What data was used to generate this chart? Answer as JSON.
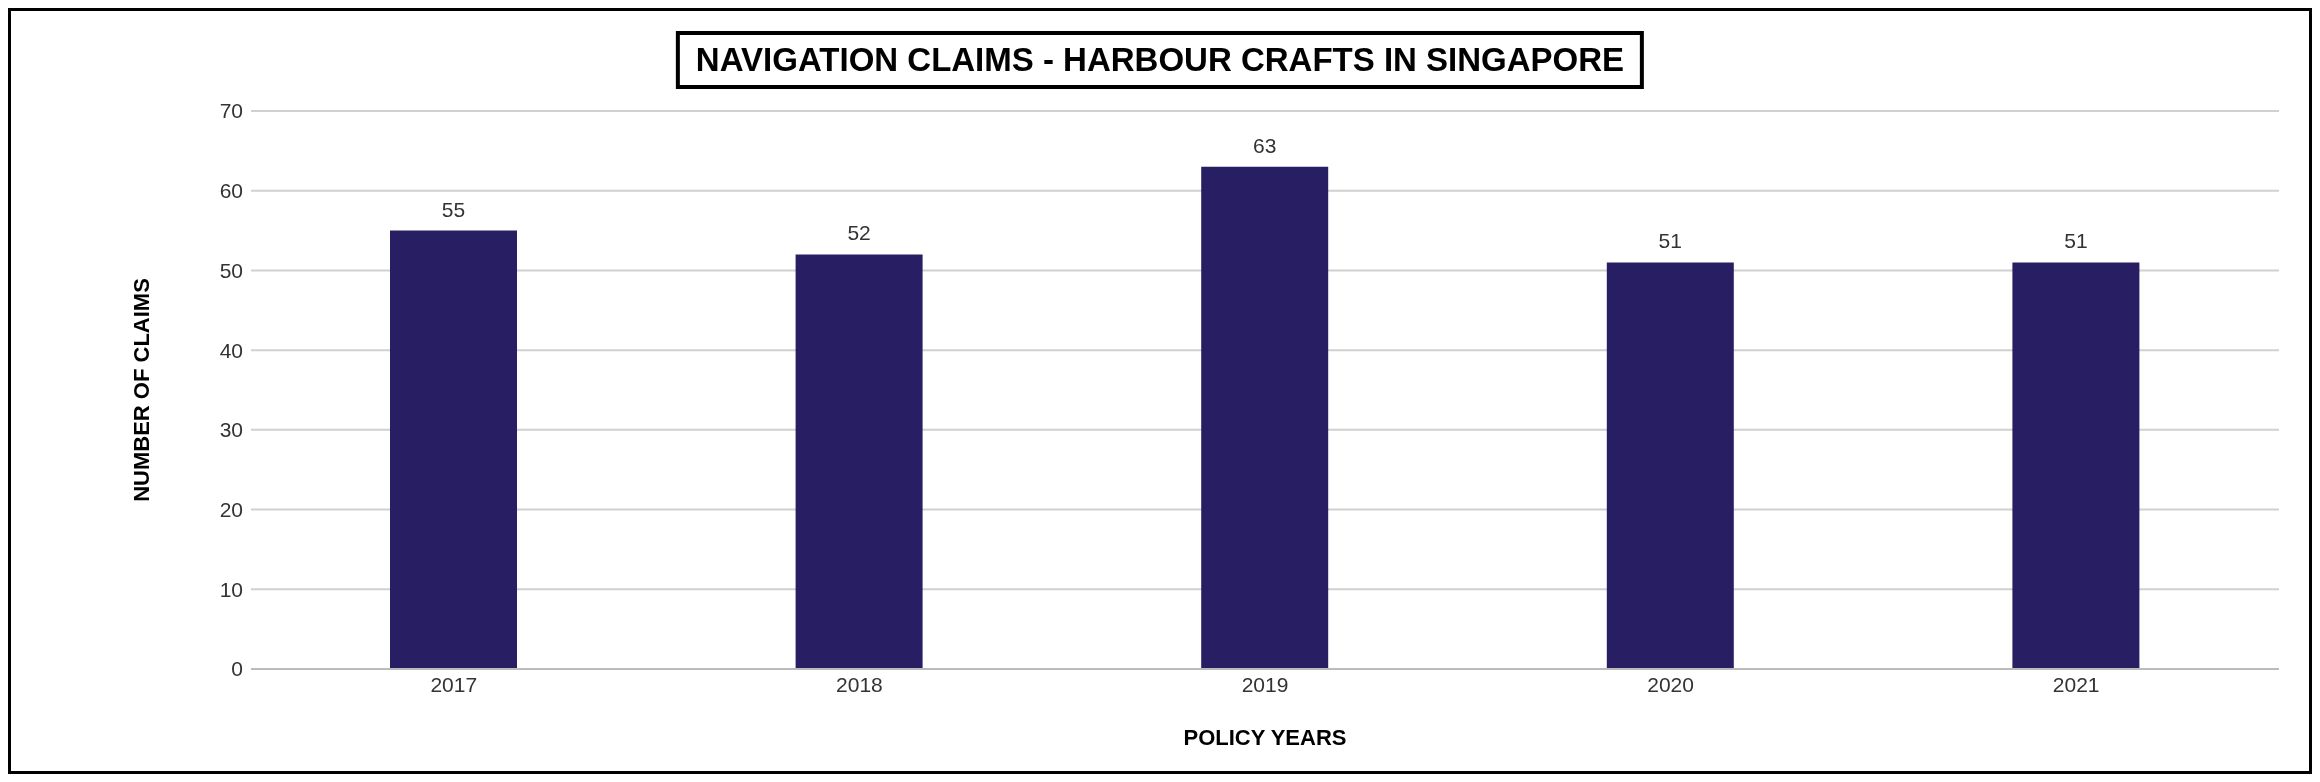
{
  "chart_data": {
    "type": "bar",
    "title": "NAVIGATION CLAIMS - HARBOUR CRAFTS IN SINGAPORE",
    "xlabel": "POLICY YEARS",
    "ylabel": "NUMBER OF CLAIMS",
    "categories": [
      "2017",
      "2018",
      "2019",
      "2020",
      "2021"
    ],
    "values": [
      55,
      52,
      63,
      51,
      51
    ],
    "color": "#281e64",
    "ylim": [
      0,
      70
    ],
    "yticks": [
      0,
      10,
      20,
      30,
      40,
      50,
      60,
      70
    ],
    "grid": "y",
    "data_labels": true
  }
}
